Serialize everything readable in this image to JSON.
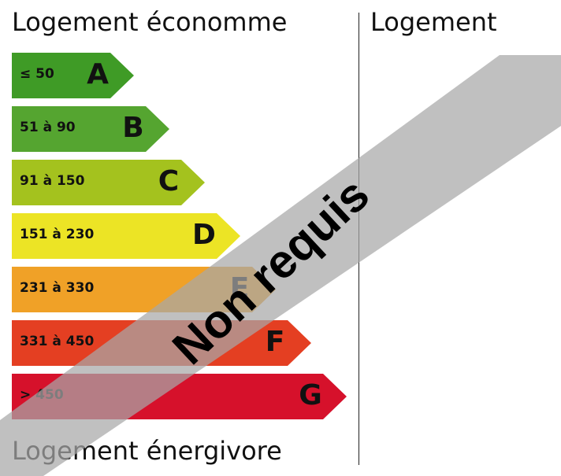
{
  "labels": {
    "top": "Logement économme",
    "bottom": "Logement énergivore",
    "right": "Logement"
  },
  "classes": [
    {
      "letter": "A",
      "range": "≤ 50",
      "color": "#3f9b26"
    },
    {
      "letter": "B",
      "range": "51 à 90",
      "color": "#55a530"
    },
    {
      "letter": "C",
      "range": "91 à 150",
      "color": "#a4c21e"
    },
    {
      "letter": "D",
      "range": "151 à 230",
      "color": "#ece425"
    },
    {
      "letter": "E",
      "range": "231 à 330",
      "color": "#f0a127"
    },
    {
      "letter": "F",
      "range": "331 à 450",
      "color": "#e43f22"
    },
    {
      "letter": "G",
      "range": "> 450",
      "color": "#d6112b"
    }
  ],
  "stamp": {
    "text": "Non requis",
    "color": "#a8a8a8"
  }
}
